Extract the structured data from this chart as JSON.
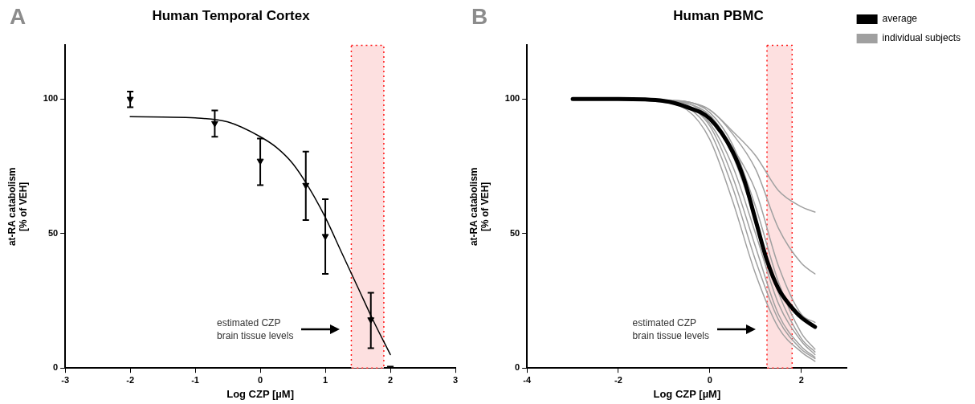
{
  "chart_data": [
    {
      "type": "scatter",
      "title": "Human Temporal Cortex",
      "xlabel": "Log CZP [µM]",
      "ylabel": "at-RA catabolism\n[% of VEH]",
      "xlim": [
        -3,
        3
      ],
      "xticks": [
        -3,
        -2,
        -1,
        0,
        1,
        2,
        3
      ],
      "ylim": [
        0,
        120
      ],
      "yticks": [
        0,
        50,
        100
      ],
      "grid": false,
      "legend": false,
      "series": [
        {
          "color": "#000000",
          "marker": "triangle",
          "x": [
            -2,
            -0.7,
            0,
            0.7,
            1,
            1.7,
            2
          ],
          "values": [
            100,
            91,
            77,
            68,
            49,
            18,
            0
          ],
          "errors": [
            [
              97,
              102.8
            ],
            [
              86,
              95.8
            ],
            [
              68,
              85.3
            ],
            [
              55,
              80.5
            ],
            [
              35,
              62.8
            ],
            [
              7.4,
              28
            ],
            null
          ]
        },
        {
          "type": "line",
          "color": "#000000",
          "marker": "none",
          "x": [
            -2,
            -1.5,
            -1,
            -0.5,
            0,
            0.25,
            0.5,
            0.75,
            1,
            1.25,
            1.5,
            1.75,
            2
          ],
          "values": [
            93.5,
            93.3,
            93,
            91.5,
            86,
            82,
            76,
            67,
            56,
            43,
            30,
            17,
            5
          ]
        }
      ],
      "bands": [
        {
          "axis": "x",
          "from": 1.4,
          "to": 1.9,
          "color": "#fde0e0"
        }
      ],
      "annotations": [
        "A",
        "estimated CZP\nbrain tissue levels"
      ]
    },
    {
      "type": "line",
      "title": "Human PBMC",
      "xlabel": "Log CZP [µM]",
      "ylabel": "at-RA catabolism\n[% of VEH]",
      "xlim": [
        -4,
        3
      ],
      "xticks": [
        -4,
        -2,
        0,
        2
      ],
      "ylim": [
        0,
        120
      ],
      "yticks": [
        0,
        50,
        100
      ],
      "grid": false,
      "legend": "top right",
      "marker": "none",
      "series": [
        {
          "name": "average",
          "color": "#000000",
          "x": [
            -3,
            -2,
            -1,
            -0.5,
            0,
            0.5,
            0.75,
            1,
            1.25,
            1.5,
            1.75,
            2,
            2.3
          ],
          "values": [
            100,
            100,
            99.3,
            97,
            92.7,
            80.4,
            70,
            55,
            40,
            29.5,
            23.4,
            18.8,
            15.3
          ]
        },
        {
          "name": "individual subjects",
          "color": "#a0a0a0",
          "x": [
            -0.9,
            -0.5,
            0,
            0.5,
            1,
            1.5,
            2,
            2.3
          ],
          "values": [
            99.5,
            99,
            96,
            88,
            79,
            66,
            60,
            58
          ]
        },
        {
          "color": "#a0a0a0",
          "x": [
            -0.8,
            -0.5,
            0,
            0.5,
            1,
            1.5,
            2,
            2.3
          ],
          "values": [
            99.5,
            99,
            96,
            87,
            74,
            52,
            39,
            35
          ]
        },
        {
          "color": "#a0a0a0",
          "x": [
            -0.7,
            -0.5,
            0,
            0.5,
            1,
            1.5,
            2,
            2.3
          ],
          "values": [
            99,
            98.5,
            94,
            82,
            66,
            38,
            20,
            17
          ]
        },
        {
          "color": "#a0a0a0",
          "x": [
            -1.3,
            -0.5,
            0,
            0.5,
            1,
            1.5,
            2,
            2.3
          ],
          "values": [
            99.5,
            96,
            85,
            62,
            35,
            15,
            6,
            2.5
          ]
        },
        {
          "color": "#a0a0a0",
          "x": [
            -1.2,
            -0.5,
            0,
            0.5,
            1,
            1.5,
            2,
            2.3
          ],
          "values": [
            99.5,
            97,
            88,
            67,
            40,
            18,
            7,
            3.5
          ]
        },
        {
          "color": "#a0a0a0",
          "x": [
            -1.1,
            -0.5,
            0,
            0.5,
            1,
            1.5,
            2,
            2.3
          ],
          "values": [
            99.5,
            97.5,
            90,
            71,
            45,
            20,
            8,
            4
          ]
        },
        {
          "color": "#a0a0a0",
          "x": [
            -1,
            -0.5,
            0,
            0.5,
            1,
            1.5,
            2,
            2.3
          ],
          "values": [
            99.5,
            98,
            91,
            75,
            50,
            24,
            10,
            5
          ]
        },
        {
          "color": "#a0a0a0",
          "x": [
            -0.95,
            -0.5,
            0,
            0.5,
            1,
            1.5,
            2,
            2.3
          ],
          "values": [
            99.5,
            98.5,
            93,
            79,
            55,
            28,
            11,
            6
          ]
        },
        {
          "color": "#a0a0a0",
          "x": [
            -0.85,
            -0.5,
            0,
            0.5,
            1,
            1.5,
            2,
            2.3
          ],
          "values": [
            99.5,
            99,
            95,
            83,
            60,
            32,
            13,
            7
          ]
        }
      ],
      "bands": [
        {
          "axis": "x",
          "from": 1.25,
          "to": 1.8,
          "color": "#fde0e0"
        }
      ],
      "annotations": [
        "B",
        "estimated CZP\nbrain tissue levels"
      ]
    }
  ]
}
